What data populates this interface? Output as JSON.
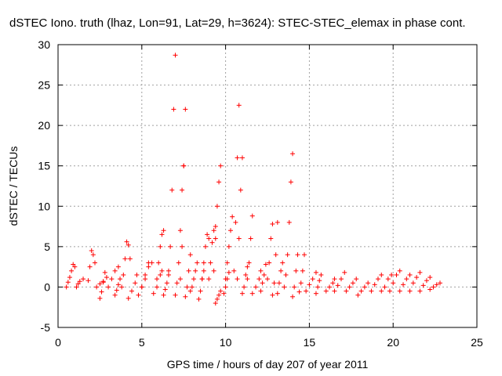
{
  "chart_data": {
    "type": "scatter",
    "title": "dSTEC Iono. truth (lhaz, Lon=91, Lat=29, h=3624): STEC-STEC_elemax in phase cont.",
    "xlabel": "GPS time / hours of day 207 of year 2011",
    "ylabel": "dSTEC  / TECUs",
    "xlim": [
      0,
      25
    ],
    "ylim": [
      -5,
      30
    ],
    "xticks": [
      0,
      5,
      10,
      15,
      20,
      25
    ],
    "yticks": [
      -5,
      0,
      5,
      10,
      15,
      20,
      25,
      30
    ],
    "grid": true,
    "marker": "+",
    "series_color": "#ff0000",
    "arcs": [
      {
        "x": [
          0.5,
          0.6,
          0.7,
          0.8,
          0.9,
          1.0
        ],
        "y": [
          0.0,
          0.6,
          1.2,
          2.0,
          2.8,
          2.5
        ]
      },
      {
        "x": [
          1.1,
          1.2,
          1.3,
          1.5
        ],
        "y": [
          0.0,
          0.4,
          0.7,
          1.0
        ]
      },
      {
        "x": [
          1.8,
          1.9,
          2.0,
          2.1,
          2.2
        ],
        "y": [
          0.8,
          2.5,
          4.5,
          4.0,
          3.0
        ]
      },
      {
        "x": [
          2.3,
          2.5,
          2.7,
          2.9
        ],
        "y": [
          0.0,
          0.4,
          0.7,
          1.2
        ]
      },
      {
        "x": [
          2.5,
          2.6,
          2.7,
          2.8
        ],
        "y": [
          -1.4,
          -0.6,
          0.6,
          1.8
        ]
      },
      {
        "x": [
          3.0,
          3.2,
          3.4,
          3.6
        ],
        "y": [
          0.0,
          1.0,
          2.0,
          2.5
        ]
      },
      {
        "x": [
          3.4,
          3.5,
          3.6,
          3.7
        ],
        "y": [
          -1.0,
          -0.4,
          0.3,
          1.0
        ]
      },
      {
        "x": [
          3.8,
          3.9,
          4.0,
          4.1,
          4.2,
          4.3
        ],
        "y": [
          0.0,
          1.5,
          3.5,
          5.6,
          5.2,
          3.5
        ]
      },
      {
        "x": [
          4.2,
          4.4,
          4.6,
          4.7
        ],
        "y": [
          -1.4,
          -0.5,
          0.5,
          1.5
        ]
      },
      {
        "x": [
          4.8,
          5.0,
          5.2,
          5.4
        ],
        "y": [
          -1.0,
          0.0,
          1.5,
          3.0
        ]
      },
      {
        "x": [
          5.0,
          5.2,
          5.4,
          5.6
        ],
        "y": [
          0.0,
          1.0,
          2.5,
          3.0
        ]
      },
      {
        "x": [
          5.7,
          5.9,
          6.1,
          6.2
        ],
        "y": [
          -0.8,
          0.0,
          1.5,
          2.0
        ]
      },
      {
        "x": [
          5.9,
          6.0,
          6.1,
          6.2,
          6.3
        ],
        "y": [
          1.0,
          3.0,
          5.0,
          6.5,
          7.0
        ]
      },
      {
        "x": [
          6.3,
          6.4,
          6.5,
          6.6
        ],
        "y": [
          -1.0,
          -0.3,
          0.5,
          1.5
        ]
      },
      {
        "x": [
          6.6,
          6.7,
          6.8,
          6.9,
          7.0
        ],
        "y": [
          2.0,
          5.0,
          12.0,
          22.0,
          28.7
        ]
      },
      {
        "x": [
          7.0,
          7.1,
          7.2,
          7.3,
          7.4,
          7.5
        ],
        "y": [
          -1.0,
          0.5,
          3.0,
          7.0,
          12.0,
          15.0
        ]
      },
      {
        "x": [
          7.3,
          7.4,
          7.5,
          7.6
        ],
        "y": [
          1.0,
          5.0,
          15.0,
          22.0
        ]
      },
      {
        "x": [
          7.6,
          7.7,
          7.8,
          7.9
        ],
        "y": [
          -1.2,
          0.0,
          2.0,
          4.0
        ]
      },
      {
        "x": [
          7.9,
          8.0,
          8.1,
          8.2,
          8.3
        ],
        "y": [
          -0.5,
          0.0,
          1.0,
          2.0,
          3.0
        ]
      },
      {
        "x": [
          8.4,
          8.5,
          8.6,
          8.7
        ],
        "y": [
          -1.5,
          -0.5,
          1.0,
          2.0
        ]
      },
      {
        "x": [
          8.6,
          8.7,
          8.8,
          8.9,
          9.0
        ],
        "y": [
          1.0,
          3.0,
          5.0,
          6.5,
          6.0
        ]
      },
      {
        "x": [
          9.0,
          9.1,
          9.2,
          9.3,
          9.4
        ],
        "y": [
          1.0,
          3.0,
          5.5,
          7.0,
          7.5
        ]
      },
      {
        "x": [
          9.3,
          9.4,
          9.5,
          9.6,
          9.7
        ],
        "y": [
          2.0,
          6.0,
          10.0,
          13.0,
          15.0
        ]
      },
      {
        "x": [
          9.4,
          9.5,
          9.6,
          9.7
        ],
        "y": [
          -2.0,
          -1.5,
          -1.0,
          -0.5
        ]
      },
      {
        "x": [
          9.9,
          10.0,
          10.1,
          10.2
        ],
        "y": [
          -0.8,
          0.0,
          1.0,
          1.8
        ]
      },
      {
        "x": [
          10.0,
          10.1,
          10.2,
          10.3,
          10.4
        ],
        "y": [
          1.0,
          3.0,
          5.0,
          7.0,
          8.7
        ]
      },
      {
        "x": [
          10.5,
          10.6,
          10.7,
          10.8
        ],
        "y": [
          2.0,
          8.0,
          16.0,
          22.5
        ]
      },
      {
        "x": [
          10.7,
          10.8,
          10.9,
          11.0
        ],
        "y": [
          1.0,
          6.0,
          12.0,
          16.0
        ]
      },
      {
        "x": [
          11.0,
          11.1,
          11.2,
          11.3
        ],
        "y": [
          -0.8,
          0.0,
          1.5,
          2.5
        ]
      },
      {
        "x": [
          11.3,
          11.4,
          11.5,
          11.6
        ],
        "y": [
          1.0,
          3.0,
          6.0,
          8.8
        ]
      },
      {
        "x": [
          11.6,
          11.8,
          12.0,
          12.1
        ],
        "y": [
          -0.8,
          0.0,
          1.0,
          2.0
        ]
      },
      {
        "x": [
          12.1,
          12.2,
          12.3,
          12.4
        ],
        "y": [
          -0.5,
          0.5,
          1.5,
          2.8
        ]
      },
      {
        "x": [
          12.5,
          12.6,
          12.7,
          12.8
        ],
        "y": [
          1.0,
          3.0,
          6.0,
          7.8
        ]
      },
      {
        "x": [
          12.8,
          12.9,
          13.0,
          13.1
        ],
        "y": [
          -1.0,
          0.5,
          4.0,
          8.0
        ]
      },
      {
        "x": [
          13.1,
          13.2,
          13.3,
          13.4
        ],
        "y": [
          -0.8,
          0.5,
          2.0,
          3.0
        ]
      },
      {
        "x": [
          13.5,
          13.6,
          13.7,
          13.8,
          13.9,
          14.0
        ],
        "y": [
          0.0,
          1.5,
          4.0,
          8.0,
          13.0,
          16.5
        ]
      },
      {
        "x": [
          14.0,
          14.1,
          14.2,
          14.3
        ],
        "y": [
          -1.2,
          0.0,
          2.0,
          4.0
        ]
      },
      {
        "x": [
          14.4,
          14.5,
          14.6,
          14.7
        ],
        "y": [
          -0.6,
          0.5,
          2.0,
          4.0
        ]
      },
      {
        "x": [
          14.8,
          15.0,
          15.2,
          15.4
        ],
        "y": [
          -0.5,
          0.3,
          1.0,
          1.8
        ]
      },
      {
        "x": [
          15.4,
          15.5,
          15.6,
          15.7
        ],
        "y": [
          -0.8,
          0.0,
          0.8,
          1.5
        ]
      },
      {
        "x": [
          16.0,
          16.2,
          16.4,
          16.5
        ],
        "y": [
          -0.5,
          0.0,
          0.5,
          1.0
        ]
      },
      {
        "x": [
          16.5,
          16.7,
          16.9,
          17.1
        ],
        "y": [
          -0.5,
          0.2,
          1.0,
          1.8
        ]
      },
      {
        "x": [
          17.2,
          17.4,
          17.6,
          17.8
        ],
        "y": [
          -0.5,
          0.0,
          0.5,
          1.0
        ]
      },
      {
        "x": [
          17.9,
          18.1,
          18.3,
          18.5
        ],
        "y": [
          -1.0,
          -0.5,
          0.0,
          0.5
        ]
      },
      {
        "x": [
          18.7,
          18.9,
          19.1,
          19.3
        ],
        "y": [
          -0.5,
          0.3,
          1.0,
          1.5
        ]
      },
      {
        "x": [
          19.3,
          19.5,
          19.7,
          19.9
        ],
        "y": [
          -0.5,
          0.0,
          1.0,
          1.5
        ]
      },
      {
        "x": [
          19.8,
          20.0,
          20.2,
          20.4
        ],
        "y": [
          -0.5,
          0.5,
          1.5,
          2.0
        ]
      },
      {
        "x": [
          20.4,
          20.6,
          20.8,
          21.0
        ],
        "y": [
          -0.5,
          0.3,
          1.0,
          1.5
        ]
      },
      {
        "x": [
          21.0,
          21.2,
          21.4,
          21.6
        ],
        "y": [
          -0.5,
          0.5,
          1.2,
          1.8
        ]
      },
      {
        "x": [
          21.6,
          21.8,
          22.0,
          22.2
        ],
        "y": [
          -0.5,
          0.2,
          0.8,
          1.2
        ]
      },
      {
        "x": [
          22.2,
          22.4,
          22.6,
          22.8
        ],
        "y": [
          -0.3,
          0.0,
          0.3,
          0.5
        ]
      }
    ]
  }
}
